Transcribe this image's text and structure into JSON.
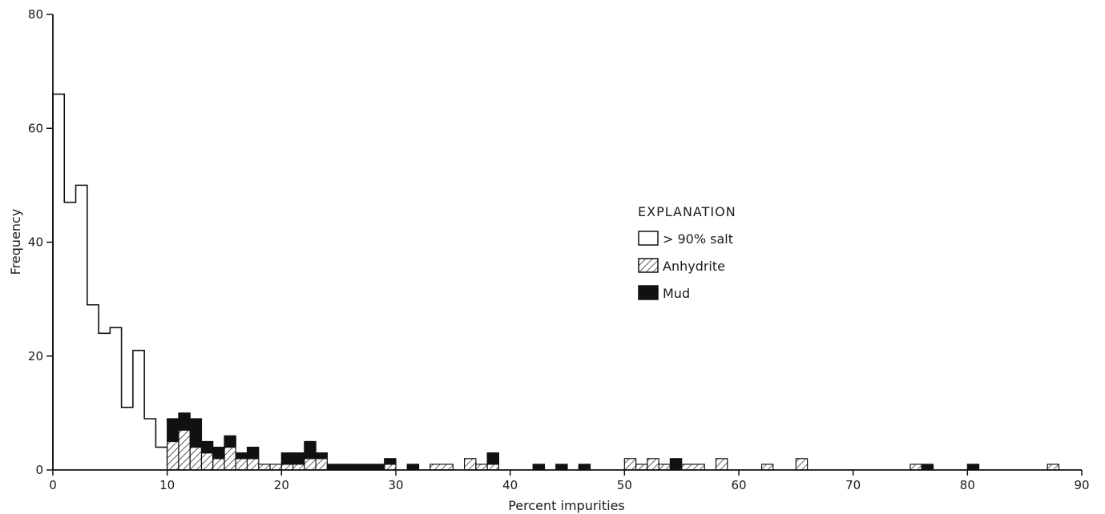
{
  "chart_data": {
    "type": "bar",
    "subtype": "stacked-histogram",
    "title": "",
    "xlabel": "Percent impurities",
    "ylabel": "Frequency",
    "xlim": [
      0,
      90
    ],
    "ylim": [
      0,
      80
    ],
    "bin_width": 1,
    "x_ticks": [
      0,
      10,
      20,
      30,
      40,
      50,
      60,
      70,
      80,
      90
    ],
    "y_ticks": [
      0,
      20,
      40,
      60,
      80
    ],
    "grid": false,
    "legend": {
      "title": "EXPLANATION",
      "position": "right-center",
      "entries": [
        "> 90% salt",
        "Anhydrite",
        "Mud"
      ]
    },
    "series": [
      {
        "name": "> 90% salt",
        "fill": "open",
        "bins": [
          {
            "x0": 0,
            "x1": 1,
            "value": 66
          },
          {
            "x0": 1,
            "x1": 2,
            "value": 47
          },
          {
            "x0": 2,
            "x1": 3,
            "value": 50
          },
          {
            "x0": 3,
            "x1": 4,
            "value": 29
          },
          {
            "x0": 4,
            "x1": 5,
            "value": 24
          },
          {
            "x0": 5,
            "x1": 6,
            "value": 25
          },
          {
            "x0": 6,
            "x1": 7,
            "value": 11
          },
          {
            "x0": 7,
            "x1": 8,
            "value": 21
          },
          {
            "x0": 8,
            "x1": 9,
            "value": 9
          },
          {
            "x0": 9,
            "x1": 10,
            "value": 4
          }
        ]
      },
      {
        "name": "Anhydrite",
        "fill": "hatched",
        "bins": [
          {
            "x0": 10,
            "x1": 11,
            "value": 5
          },
          {
            "x0": 11,
            "x1": 12,
            "value": 7
          },
          {
            "x0": 12,
            "x1": 13,
            "value": 4
          },
          {
            "x0": 13,
            "x1": 14,
            "value": 3
          },
          {
            "x0": 14,
            "x1": 15,
            "value": 2
          },
          {
            "x0": 15,
            "x1": 16,
            "value": 4
          },
          {
            "x0": 16,
            "x1": 17,
            "value": 2
          },
          {
            "x0": 17,
            "x1": 18,
            "value": 2
          },
          {
            "x0": 18,
            "x1": 19,
            "value": 1
          },
          {
            "x0": 19,
            "x1": 20,
            "value": 1
          },
          {
            "x0": 20,
            "x1": 21,
            "value": 1
          },
          {
            "x0": 21,
            "x1": 22,
            "value": 1
          },
          {
            "x0": 22,
            "x1": 23,
            "value": 2
          },
          {
            "x0": 23,
            "x1": 24,
            "value": 2
          },
          {
            "x0": 29,
            "x1": 30,
            "value": 1
          },
          {
            "x0": 33,
            "x1": 35,
            "value": 1
          },
          {
            "x0": 36,
            "x1": 37,
            "value": 2
          },
          {
            "x0": 37,
            "x1": 38,
            "value": 1
          },
          {
            "x0": 38,
            "x1": 39,
            "value": 1
          },
          {
            "x0": 50,
            "x1": 51,
            "value": 2
          },
          {
            "x0": 51,
            "x1": 52,
            "value": 1
          },
          {
            "x0": 52,
            "x1": 53,
            "value": 2
          },
          {
            "x0": 53,
            "x1": 54,
            "value": 1
          },
          {
            "x0": 55,
            "x1": 57,
            "value": 1
          },
          {
            "x0": 58,
            "x1": 59,
            "value": 2
          },
          {
            "x0": 62,
            "x1": 63,
            "value": 1
          },
          {
            "x0": 65,
            "x1": 66,
            "value": 2
          },
          {
            "x0": 75,
            "x1": 76,
            "value": 1
          },
          {
            "x0": 87,
            "x1": 88,
            "value": 1
          }
        ]
      },
      {
        "name": "Mud",
        "fill": "solid",
        "bins": [
          {
            "x0": 10,
            "x1": 11,
            "value": 4
          },
          {
            "x0": 11,
            "x1": 12,
            "value": 3
          },
          {
            "x0": 12,
            "x1": 13,
            "value": 5
          },
          {
            "x0": 13,
            "x1": 14,
            "value": 2
          },
          {
            "x0": 14,
            "x1": 15,
            "value": 2
          },
          {
            "x0": 15,
            "x1": 16,
            "value": 2
          },
          {
            "x0": 16,
            "x1": 17,
            "value": 1
          },
          {
            "x0": 17,
            "x1": 18,
            "value": 2
          },
          {
            "x0": 20,
            "x1": 21,
            "value": 2
          },
          {
            "x0": 21,
            "x1": 22,
            "value": 2
          },
          {
            "x0": 22,
            "x1": 23,
            "value": 3
          },
          {
            "x0": 23,
            "x1": 24,
            "value": 1
          },
          {
            "x0": 24,
            "x1": 25,
            "value": 1
          },
          {
            "x0": 25,
            "x1": 26,
            "value": 1
          },
          {
            "x0": 26,
            "x1": 27,
            "value": 1
          },
          {
            "x0": 27,
            "x1": 28,
            "value": 1
          },
          {
            "x0": 28,
            "x1": 29,
            "value": 1
          },
          {
            "x0": 29,
            "x1": 30,
            "value": 1
          },
          {
            "x0": 31,
            "x1": 32,
            "value": 1
          },
          {
            "x0": 38,
            "x1": 39,
            "value": 2
          },
          {
            "x0": 42,
            "x1": 43,
            "value": 1
          },
          {
            "x0": 44,
            "x1": 45,
            "value": 1
          },
          {
            "x0": 46,
            "x1": 47,
            "value": 1
          },
          {
            "x0": 54,
            "x1": 55,
            "value": 2
          },
          {
            "x0": 76,
            "x1": 77,
            "value": 1
          },
          {
            "x0": 80,
            "x1": 81,
            "value": 1
          }
        ]
      }
    ]
  }
}
